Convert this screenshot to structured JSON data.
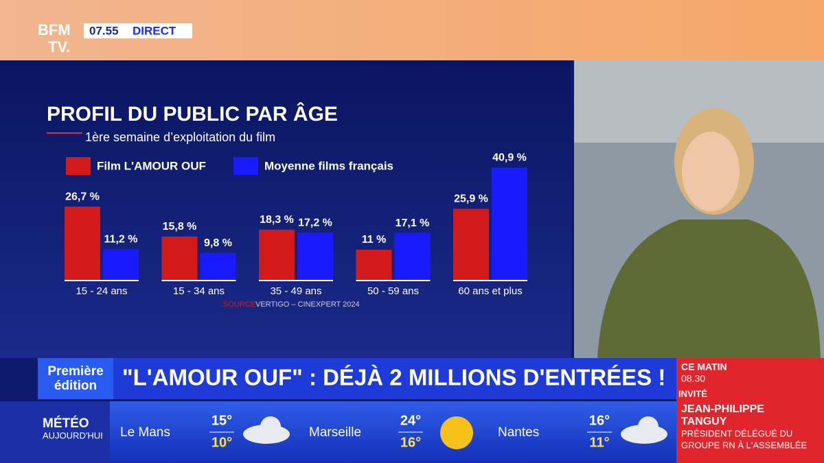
{
  "header": {
    "logo_top": "BFM",
    "logo_bottom": "TV.",
    "time": "07.55",
    "live": "DIRECT"
  },
  "chart_data": {
    "type": "bar",
    "title": "PROFIL DU PUBLIC PAR ÂGE",
    "subtitle": "1ère semaine d’exploitation du film",
    "categories": [
      "15 - 24 ans",
      "15 - 34 ans",
      "35 - 49 ans",
      "50 - 59 ans",
      "60 ans et plus"
    ],
    "series": [
      {
        "name": "Film L'AMOUR OUF",
        "color": "#d31a1a",
        "values": [
          26.7,
          15.8,
          18.3,
          11,
          25.9
        ],
        "value_labels": [
          "26,7 %",
          "15,8 %",
          "18,3 %",
          "11 %",
          "25,9 %"
        ]
      },
      {
        "name": "Moyenne films français",
        "color": "#1a1aff",
        "values": [
          11.2,
          9.8,
          17.2,
          17.1,
          40.9
        ],
        "value_labels": [
          "11,2 %",
          "9,8 %",
          "17,2 %",
          "17,1 %",
          "40,9 %"
        ]
      }
    ],
    "source_label": "SOURCE",
    "source": "VERTIGO – CINEXPERT 2024"
  },
  "banner": {
    "show_line1": "Première",
    "show_line2": "édition",
    "headline": "\"L'AMOUR OUF\" : DÉJÀ 2 MILLIONS D'ENTRÉES !"
  },
  "guest": {
    "slot": "CE MATIN",
    "time": "08.30",
    "role": "INVITÉ",
    "name_line1": "JEAN-PHILIPPE",
    "name_line2": "TANGUY",
    "title_line1": "PRÉSIDENT DÉLÉGUÉ DU",
    "title_line2": "GROUPE RN À L'ASSEMBLÉE"
  },
  "weather": {
    "label": "MÉTÉO",
    "sublabel": "AUJOURD'HUI",
    "cities": [
      {
        "city": "Le Mans",
        "high": "15°",
        "low": "10°"
      },
      {
        "city": "Marseille",
        "high": "24°",
        "low": "16°"
      },
      {
        "city": "Nantes",
        "high": "16°",
        "low": "11°"
      }
    ]
  }
}
